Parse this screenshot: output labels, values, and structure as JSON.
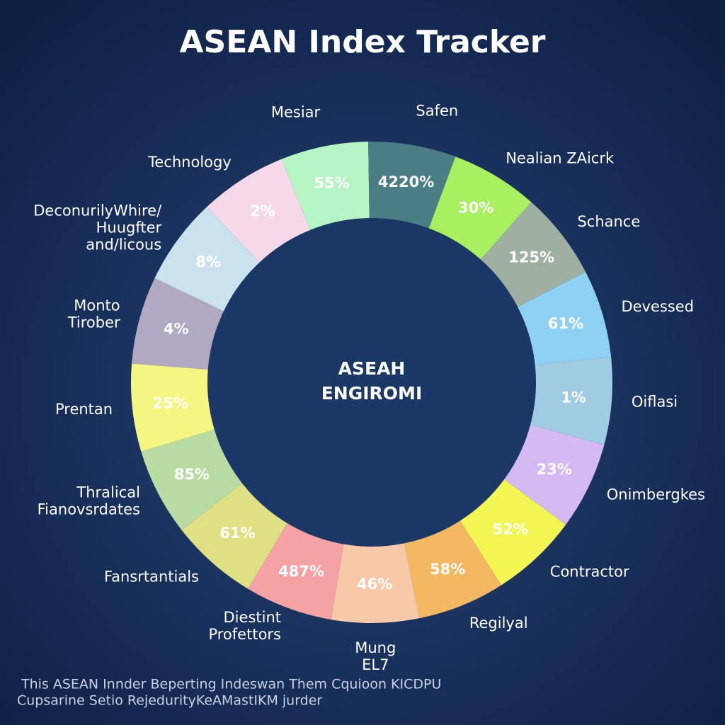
{
  "chart_data": {
    "type": "donut",
    "title": "ASEAN Index Tracker",
    "center_text": [
      "ASEAH",
      "ENGIROMI"
    ],
    "categories": [
      [
        "Mesiar"
      ],
      [
        "Safen"
      ],
      [
        "Nealian ZAicrk"
      ],
      [
        "Schance"
      ],
      [
        "Devessed"
      ],
      [
        "Oiflasi"
      ],
      [
        "Onimbergkes"
      ],
      [
        "Contractor"
      ],
      [
        "Regilyal"
      ],
      [
        "Mung",
        "EL7"
      ],
      [
        "Diestint",
        "Profettors"
      ],
      [
        "Fansrtantials"
      ],
      [
        "Thralical",
        "Fianovsrdates"
      ],
      [
        "Prentan"
      ],
      [
        "Monto",
        "Tirober"
      ],
      [
        "DeconurilyWhire/",
        "Huugfter",
        "and/licous"
      ],
      [
        "Technology"
      ]
    ],
    "values": [
      55,
      4220,
      30,
      125,
      61,
      1,
      23,
      52,
      58,
      46,
      487,
      61,
      85,
      25,
      4,
      8,
      2
    ],
    "value_labels": [
      "55%",
      "4220%",
      "30%",
      "125%",
      "61%",
      "1%",
      "23%",
      "52%",
      "58%",
      "46%",
      "487%",
      "61%",
      "85%",
      "25%",
      "4%",
      "8%",
      "2%"
    ],
    "colors": [
      "#b5f5c4",
      "#4b7d85",
      "#a9f060",
      "#9fb0a2",
      "#8fd0f5",
      "#9fcbe3",
      "#d4b9f2",
      "#f2f552",
      "#f5b862",
      "#f7c9a9",
      "#f5a2a4",
      "#dfe083",
      "#b9dca3",
      "#f5f582",
      "#b1a9c2",
      "#c9e2ee",
      "#f6d9e9"
    ],
    "footnote": [
      "This ASEAN Innder Beperting Indeswan Them Cquioon KICDPU",
      "Cupsarine Setio RejedurityKeAMastIKM  jurder"
    ]
  }
}
